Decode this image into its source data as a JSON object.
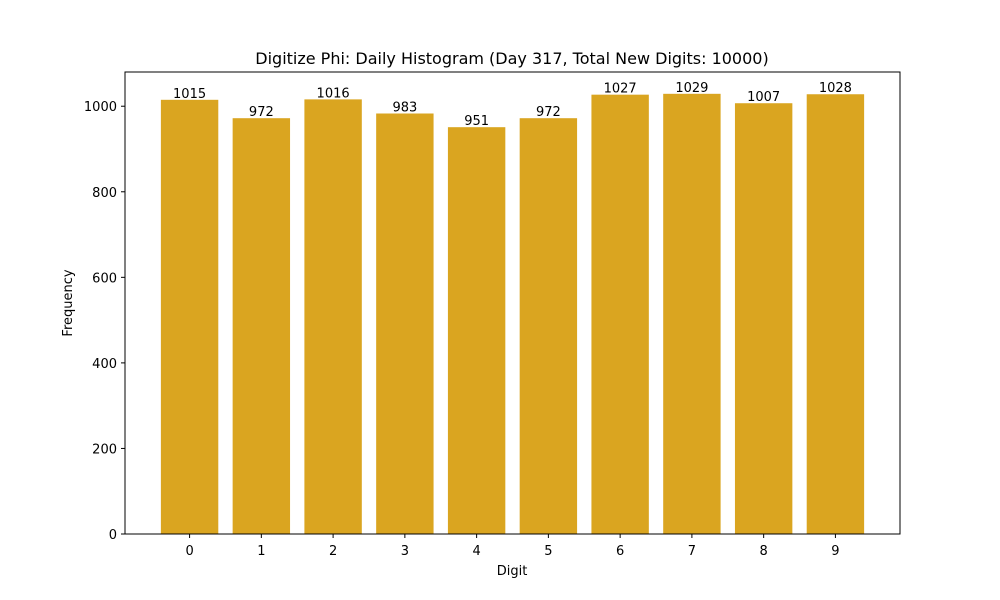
{
  "chart_data": {
    "type": "bar",
    "title": "Digitize Phi: Daily Histogram (Day 317, Total New Digits: 10000)",
    "xlabel": "Digit",
    "ylabel": "Frequency",
    "categories": [
      "0",
      "1",
      "2",
      "3",
      "4",
      "5",
      "6",
      "7",
      "8",
      "9"
    ],
    "values": [
      1015,
      972,
      1016,
      983,
      951,
      972,
      1027,
      1029,
      1007,
      1028
    ],
    "ylim": [
      0,
      1080
    ],
    "yticks": [
      0,
      200,
      400,
      600,
      800,
      1000
    ],
    "bar_color": "#DAA520",
    "grid": false,
    "legend": "none"
  }
}
